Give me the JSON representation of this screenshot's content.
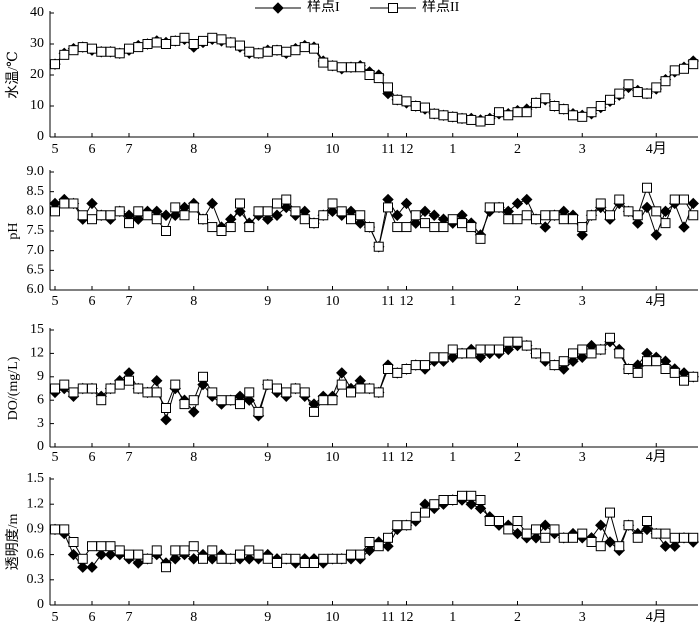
{
  "chart_data": [
    {
      "type": "line",
      "ylabel": "水温/℃",
      "legend": "top",
      "ylim": [
        0,
        40
      ],
      "yticks": [
        0,
        10,
        20,
        30,
        40
      ],
      "categories": [
        "5",
        null,
        null,
        null,
        "6",
        null,
        null,
        null,
        "7",
        null,
        null,
        null,
        null,
        null,
        null,
        "8",
        null,
        null,
        null,
        null,
        null,
        null,
        null,
        "9",
        null,
        null,
        null,
        null,
        null,
        null,
        "10",
        null,
        null,
        null,
        null,
        null,
        "11",
        null,
        "12",
        null,
        null,
        null,
        null,
        "1",
        null,
        null,
        null,
        null,
        null,
        null,
        "2",
        null,
        null,
        null,
        null,
        null,
        null,
        "3",
        null,
        null,
        null,
        null,
        null,
        null,
        null,
        "4月",
        null,
        null,
        null,
        null
      ],
      "series": [
        {
          "name": "样点I",
          "marker": "diamond",
          "color": "#000000",
          "values": [
            23.5,
            27,
            28.5,
            29,
            28,
            27.5,
            27.5,
            27,
            28,
            29.5,
            30,
            31,
            30.5,
            31,
            31.5,
            29,
            30.5,
            31.5,
            31,
            30.5,
            29,
            27,
            27,
            28,
            28,
            27,
            28.5,
            29.5,
            29,
            24.5,
            23,
            22,
            22.5,
            23,
            21,
            20,
            14,
            12,
            11,
            10,
            9,
            7.5,
            7,
            6.5,
            6,
            6,
            5.5,
            6,
            7.5,
            7.5,
            8.5,
            9,
            11,
            12,
            10,
            9,
            7.5,
            7,
            7.5,
            9.5,
            11.5,
            13.5,
            16,
            15,
            14,
            15.5,
            18.5,
            21,
            22.5,
            24.5
          ]
        },
        {
          "name": "样点II",
          "marker": "square",
          "color": "#ffffff",
          "values": [
            23.5,
            26.5,
            28,
            29,
            28.5,
            27.5,
            27.5,
            27,
            28.5,
            29,
            30,
            30.5,
            30,
            31,
            32,
            30,
            31,
            32,
            31.5,
            30.5,
            29.5,
            27.5,
            27,
            27.5,
            28,
            27.5,
            28,
            29,
            28.5,
            24,
            23,
            22.5,
            22.5,
            22.5,
            20,
            19,
            16,
            12,
            11.5,
            10,
            9.5,
            7.5,
            7,
            6.5,
            6,
            5.5,
            5,
            5.5,
            8,
            7,
            8,
            8,
            11,
            12.5,
            10,
            9,
            7,
            6.5,
            8,
            10,
            12,
            14,
            17,
            14.5,
            14,
            16,
            18,
            21.5,
            22,
            23.5
          ]
        }
      ]
    },
    {
      "type": "line",
      "ylabel": "pH",
      "ylim": [
        6.0,
        9.0
      ],
      "yticks": [
        {
          "value": 6.0,
          "label": "6.0"
        },
        {
          "value": 6.5,
          "label": "6.5"
        },
        {
          "value": 7.0,
          "label": "7.0"
        },
        {
          "value": 7.5,
          "label": "7.5"
        },
        {
          "value": 8.0,
          "label": "8.0"
        },
        {
          "value": 8.5,
          "label": "8.5"
        },
        {
          "value": 9.0,
          "label": "9.0"
        }
      ],
      "categories": [
        "5",
        null,
        null,
        null,
        "6",
        null,
        null,
        null,
        "7",
        null,
        null,
        null,
        null,
        null,
        null,
        "8",
        null,
        null,
        null,
        null,
        null,
        null,
        null,
        "9",
        null,
        null,
        null,
        null,
        null,
        null,
        "10",
        null,
        null,
        null,
        null,
        null,
        "11",
        null,
        "12",
        null,
        null,
        null,
        null,
        "1",
        null,
        null,
        null,
        null,
        null,
        null,
        "2",
        null,
        null,
        null,
        null,
        null,
        null,
        "3",
        null,
        null,
        null,
        null,
        null,
        null,
        null,
        "4月",
        null,
        null,
        null,
        null
      ],
      "series": [
        {
          "marker": "diamond",
          "color": "#000000",
          "values": [
            8.2,
            8.3,
            8.2,
            7.8,
            8.2,
            7.9,
            7.8,
            8.0,
            7.9,
            7.8,
            8.0,
            8.0,
            7.9,
            7.9,
            8.1,
            8.2,
            7.8,
            8.2,
            7.6,
            7.8,
            8.0,
            7.7,
            7.9,
            7.8,
            7.9,
            8.1,
            7.9,
            8.0,
            7.7,
            7.9,
            8.0,
            7.9,
            8.0,
            7.7,
            7.6,
            7.1,
            8.3,
            7.9,
            8.2,
            7.7,
            8.0,
            7.9,
            7.8,
            7.7,
            7.9,
            7.7,
            7.4,
            8.0,
            8.1,
            8.0,
            8.2,
            8.3,
            7.8,
            7.6,
            7.9,
            8.0,
            7.9,
            7.4,
            7.9,
            8.1,
            7.8,
            8.2,
            8.0,
            7.7,
            8.1,
            7.4,
            8.0,
            8.2,
            7.6,
            8.2
          ]
        },
        {
          "marker": "square",
          "color": "#ffffff",
          "values": [
            8.0,
            8.2,
            8.2,
            7.9,
            7.8,
            7.9,
            7.9,
            8.0,
            7.7,
            8.0,
            7.9,
            7.8,
            7.5,
            8.1,
            7.9,
            8.1,
            7.8,
            7.6,
            7.5,
            7.6,
            8.2,
            7.6,
            8.0,
            8.0,
            8.2,
            8.3,
            8.0,
            7.8,
            7.7,
            7.9,
            8.2,
            8.0,
            7.8,
            7.9,
            7.6,
            7.1,
            8.1,
            7.6,
            7.6,
            7.9,
            7.7,
            7.6,
            7.6,
            7.8,
            7.7,
            7.6,
            7.3,
            8.1,
            8.1,
            7.8,
            7.8,
            7.9,
            7.8,
            7.9,
            7.9,
            7.8,
            7.8,
            7.6,
            7.9,
            8.2,
            7.9,
            8.3,
            8.0,
            7.9,
            8.6,
            8.0,
            7.7,
            8.3,
            8.3,
            7.9
          ]
        }
      ]
    },
    {
      "type": "line",
      "ylabel": "DO/(mg/L)",
      "ylim": [
        0,
        15
      ],
      "yticks": [
        0,
        3,
        6,
        9,
        12,
        15
      ],
      "categories": [
        "5",
        null,
        null,
        null,
        "6",
        null,
        null,
        null,
        "7",
        null,
        null,
        null,
        null,
        null,
        null,
        "8",
        null,
        null,
        null,
        null,
        null,
        null,
        null,
        "9",
        null,
        null,
        null,
        null,
        null,
        null,
        "10",
        null,
        null,
        null,
        null,
        null,
        "11",
        null,
        "12",
        null,
        null,
        null,
        null,
        "1",
        null,
        null,
        null,
        null,
        null,
        null,
        "2",
        null,
        null,
        null,
        null,
        null,
        null,
        "3",
        null,
        null,
        null,
        null,
        null,
        null,
        null,
        "4月",
        null,
        null,
        null,
        null
      ],
      "series": [
        {
          "marker": "diamond",
          "color": "#000000",
          "values": [
            7,
            7.5,
            6.5,
            7.5,
            7.5,
            6.5,
            7.5,
            8.5,
            9.5,
            7.5,
            7,
            8.5,
            3.5,
            7.5,
            6,
            4.5,
            8,
            6.5,
            5.5,
            6,
            6.5,
            6,
            4,
            8,
            7,
            6.5,
            7.5,
            6.5,
            5.5,
            6.5,
            6.5,
            9.5,
            7.5,
            8.5,
            7.5,
            7,
            10.5,
            9.5,
            10,
            10.5,
            10,
            11,
            11,
            11.5,
            12,
            12.5,
            11.5,
            12,
            12,
            12.5,
            13,
            13,
            12,
            11,
            10.5,
            10,
            11,
            11.5,
            13,
            12.5,
            13.5,
            12.5,
            10,
            10.5,
            12,
            11.5,
            11,
            10,
            9.5,
            9
          ]
        },
        {
          "marker": "square",
          "color": "#ffffff",
          "values": [
            7.5,
            8,
            7,
            7.5,
            7.5,
            6,
            7.5,
            8,
            8.5,
            7.5,
            7,
            7,
            5,
            8,
            5.5,
            6,
            9,
            7,
            6,
            6,
            5.5,
            7,
            4.5,
            8,
            7.5,
            7,
            7.5,
            7,
            4.5,
            6,
            6,
            8,
            7,
            7.5,
            7.5,
            7,
            10,
            9.5,
            10,
            10.5,
            10.5,
            11.5,
            11.5,
            12.5,
            12,
            12,
            12.5,
            12.5,
            12.5,
            13.5,
            13.5,
            13,
            12,
            11.5,
            10.5,
            11,
            12,
            12.5,
            12,
            12.5,
            14,
            12,
            10,
            9.5,
            11,
            11,
            10,
            9.5,
            8.5,
            9
          ]
        }
      ]
    },
    {
      "type": "line",
      "ylabel": "透明度/m",
      "ylim": [
        0,
        1.5
      ],
      "yticks": [
        0,
        0.3,
        0.6,
        0.9,
        1.2,
        1.5
      ],
      "categories": [
        "5",
        null,
        null,
        null,
        "6",
        null,
        null,
        null,
        "7",
        null,
        null,
        null,
        null,
        null,
        null,
        "8",
        null,
        null,
        null,
        null,
        null,
        null,
        null,
        "9",
        null,
        null,
        null,
        null,
        null,
        null,
        "10",
        null,
        null,
        null,
        null,
        null,
        "11",
        null,
        "12",
        null,
        null,
        null,
        null,
        "1",
        null,
        null,
        null,
        null,
        null,
        null,
        "2",
        null,
        null,
        null,
        null,
        null,
        null,
        "3",
        null,
        null,
        null,
        null,
        null,
        null,
        null,
        "4月",
        null,
        null,
        null,
        null
      ],
      "series": [
        {
          "marker": "diamond",
          "color": "#000000",
          "values": [
            0.9,
            0.85,
            0.6,
            0.45,
            0.45,
            0.6,
            0.6,
            0.6,
            0.55,
            0.5,
            0.55,
            0.6,
            0.5,
            0.55,
            0.6,
            0.55,
            0.6,
            0.55,
            0.6,
            0.55,
            0.55,
            0.55,
            0.55,
            0.6,
            0.55,
            0.55,
            0.5,
            0.55,
            0.55,
            0.5,
            0.55,
            0.55,
            0.55,
            0.55,
            0.65,
            0.75,
            0.7,
            0.9,
            0.95,
            1.0,
            1.2,
            1.15,
            1.2,
            1.25,
            1.25,
            1.2,
            1.15,
            1.05,
            0.95,
            0.95,
            0.85,
            0.8,
            0.8,
            0.95,
            0.85,
            0.8,
            0.85,
            0.8,
            0.8,
            0.95,
            0.75,
            0.65,
            0.95,
            0.85,
            0.9,
            0.85,
            0.7,
            0.7,
            0.8,
            0.75
          ]
        },
        {
          "marker": "square",
          "color": "#ffffff",
          "values": [
            0.9,
            0.9,
            0.75,
            0.55,
            0.7,
            0.7,
            0.7,
            0.65,
            0.6,
            0.6,
            0.55,
            0.65,
            0.45,
            0.65,
            0.65,
            0.7,
            0.55,
            0.65,
            0.55,
            0.55,
            0.6,
            0.65,
            0.6,
            0.55,
            0.5,
            0.55,
            0.55,
            0.5,
            0.5,
            0.55,
            0.55,
            0.55,
            0.6,
            0.6,
            0.75,
            0.7,
            0.8,
            0.95,
            0.95,
            1.05,
            1.1,
            1.2,
            1.25,
            1.25,
            1.3,
            1.3,
            1.25,
            1.0,
            1.0,
            0.9,
            1.0,
            0.85,
            0.9,
            0.8,
            0.9,
            0.8,
            0.8,
            0.85,
            0.75,
            0.7,
            1.1,
            0.7,
            0.95,
            0.8,
            1.0,
            0.85,
            0.85,
            0.8,
            0.8,
            0.8
          ]
        }
      ]
    }
  ]
}
